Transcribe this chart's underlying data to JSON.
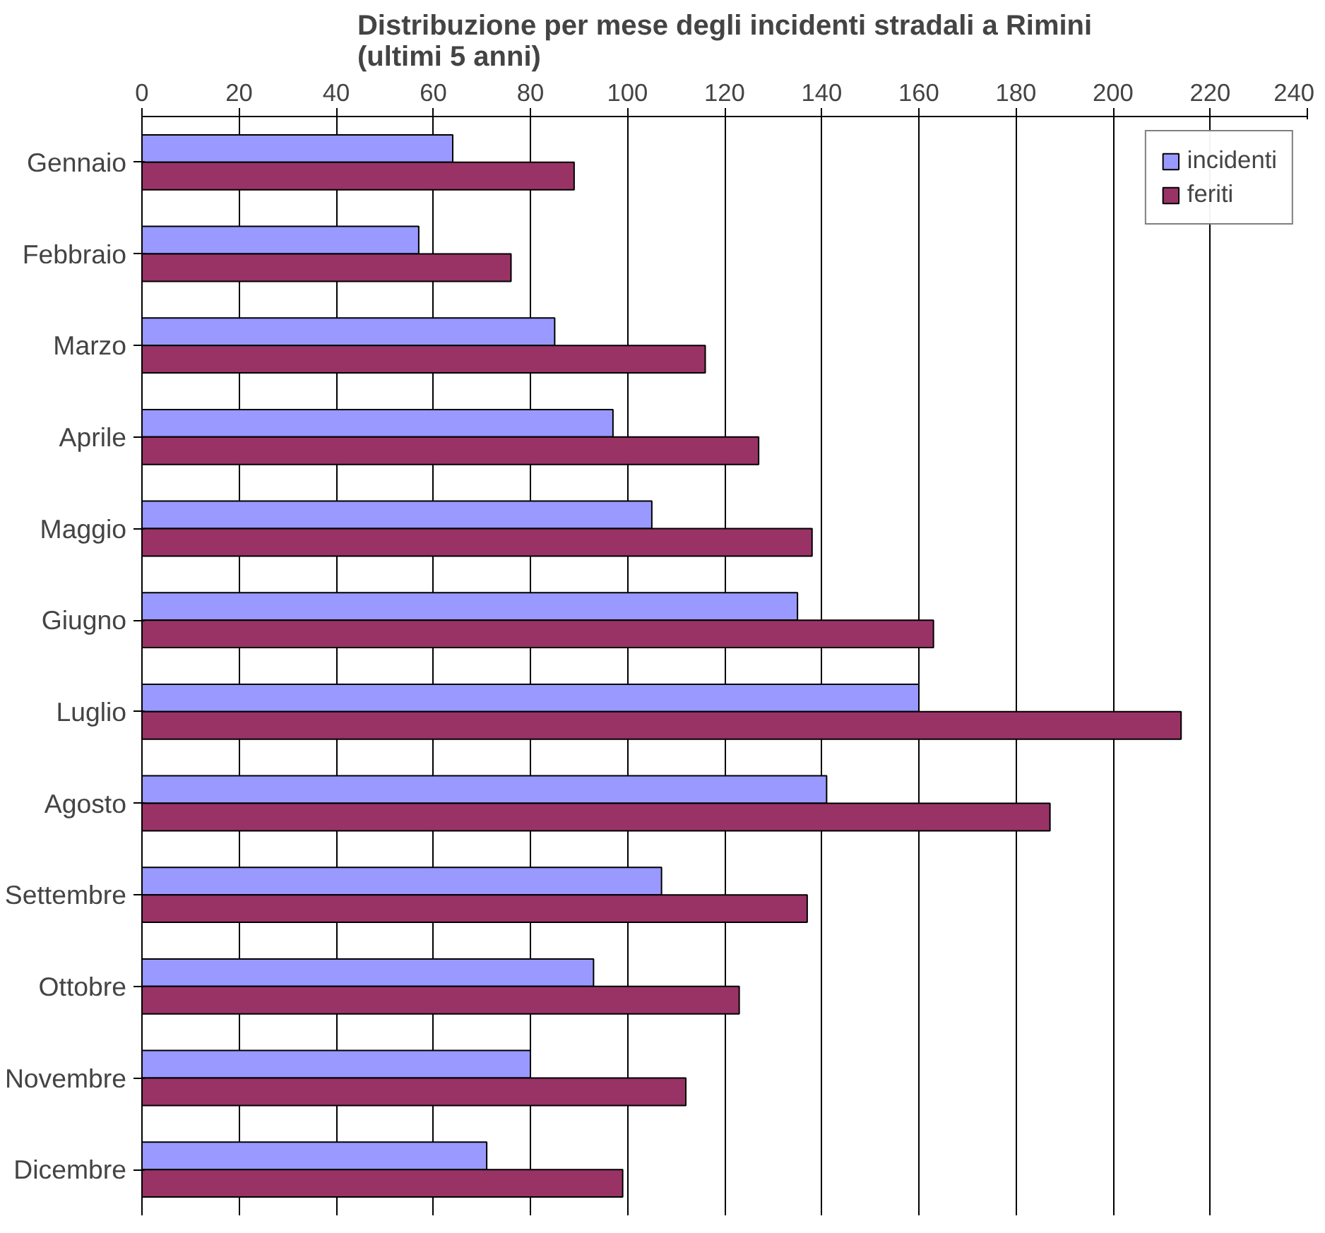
{
  "chart_data": {
    "type": "bar",
    "orientation": "horizontal",
    "title": "Distribuzione per mese degli incidenti stradali a Rimini\n(ultimi 5 anni)",
    "categories": [
      "Gennaio",
      "Febbraio",
      "Marzo",
      "Aprile",
      "Maggio",
      "Giugno",
      "Luglio",
      "Agosto",
      "Settembre",
      "Ottobre",
      "Novembre",
      "Dicembre"
    ],
    "series": [
      {
        "name": "incidenti",
        "color": "#9999ff",
        "values": [
          64,
          57,
          85,
          97,
          105,
          135,
          160,
          141,
          107,
          93,
          80,
          71
        ]
      },
      {
        "name": "feriti",
        "color": "#993366",
        "values": [
          89,
          76,
          116,
          127,
          138,
          163,
          214,
          187,
          137,
          123,
          112,
          99
        ]
      }
    ],
    "xlim": [
      0,
      240
    ],
    "xticks": [
      0,
      20,
      40,
      60,
      80,
      100,
      120,
      140,
      160,
      180,
      200,
      220,
      240
    ],
    "grid": "x",
    "legend": "top right"
  }
}
